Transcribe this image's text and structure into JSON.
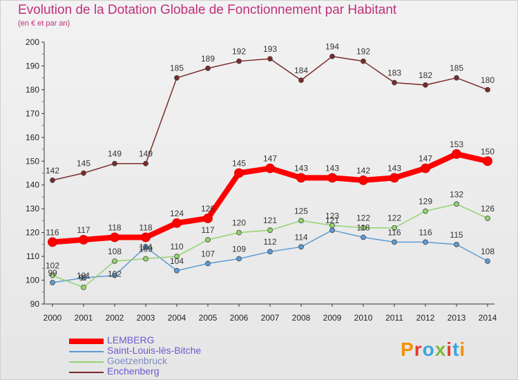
{
  "title": "Evolution de la Dotation Globale de Fonctionnement par Habitant",
  "subtitle": "(en € et par an)",
  "logo": {
    "text": "Proxiti",
    "colors": [
      "#f39200",
      "#e63a2e",
      "#3aa6dd",
      "#7dbb42",
      "#e63a2e",
      "#3aa6dd",
      "#f39200"
    ]
  },
  "chart_data": {
    "type": "line",
    "x": [
      "2000",
      "2001",
      "2002",
      "2003",
      "2004",
      "2005",
      "2006",
      "2007",
      "2008",
      "2009",
      "2010",
      "2011",
      "2012",
      "2013",
      "2014"
    ],
    "ylim": [
      90,
      200
    ],
    "yticks": [
      90,
      100,
      110,
      120,
      130,
      140,
      150,
      160,
      170,
      180,
      190,
      200
    ],
    "grid": false,
    "legend_position": "bottom-left",
    "series": [
      {
        "name": "Enchenberg",
        "color": "#7a2a2a",
        "values": [
          142,
          145,
          149,
          149,
          185,
          189,
          192,
          193,
          184,
          194,
          192,
          183,
          182,
          185,
          180
        ]
      },
      {
        "name": "Saint-Louis-lès-Bitche",
        "color": "#5b9bd5",
        "values": [
          99,
          101,
          102,
          114,
          104,
          107,
          109,
          112,
          114,
          121,
          118,
          116,
          116,
          115,
          108
        ]
      },
      {
        "name": "Goetzenbruck",
        "color": "#92d36e",
        "values": [
          102,
          97,
          108,
          109,
          110,
          117,
          120,
          121,
          125,
          123,
          122,
          122,
          129,
          132,
          126
        ]
      },
      {
        "name": "LEMBERG",
        "color": "#ff0000",
        "values": [
          116,
          117,
          118,
          118,
          124,
          126,
          145,
          147,
          143,
          143,
          142,
          143,
          147,
          153,
          150
        ]
      }
    ],
    "data_labels": {
      "Enchenberg": [
        "142",
        "145",
        "149",
        "149",
        "185",
        "189",
        "192",
        "193",
        "184",
        "194",
        "192",
        "183",
        "182",
        "185",
        "180"
      ],
      "Saint-Louis-lès-Bitche": [
        "",
        "",
        "",
        "",
        "104",
        "107",
        "109",
        "112",
        "114",
        "121",
        "118",
        "116",
        "116",
        "115",
        "108"
      ],
      "Goetzenbruck": [
        "102",
        "",
        "108",
        "109",
        "110",
        "117",
        "120",
        "121",
        "125",
        "123",
        "122",
        "122",
        "129",
        "132",
        "126"
      ],
      "LEMBERG": [
        "116",
        "117",
        "118",
        "118",
        "124",
        "126",
        "145",
        "147",
        "143",
        "143",
        "142",
        "143",
        "147",
        "153",
        "150"
      ]
    },
    "extra_labels": [
      {
        "text": "99",
        "series": "Saint-Louis-lès-Bitche",
        "index": 0
      },
      {
        "text": "97",
        "series": "Goetzenbruck",
        "index": 1
      },
      {
        "text": "101",
        "series": "Saint-Louis-lès-Bitche",
        "index": 1,
        "above": true
      },
      {
        "text": "102",
        "series": "Saint-Louis-lès-Bitche",
        "index": 2,
        "below": true
      },
      {
        "text": "114",
        "series": "Saint-Louis-lès-Bitche",
        "index": 3,
        "onpoint": true
      }
    ],
    "legend_order": [
      "LEMBERG",
      "Saint-Louis-lès-Bitche",
      "Goetzenbruck",
      "Enchenberg"
    ]
  }
}
